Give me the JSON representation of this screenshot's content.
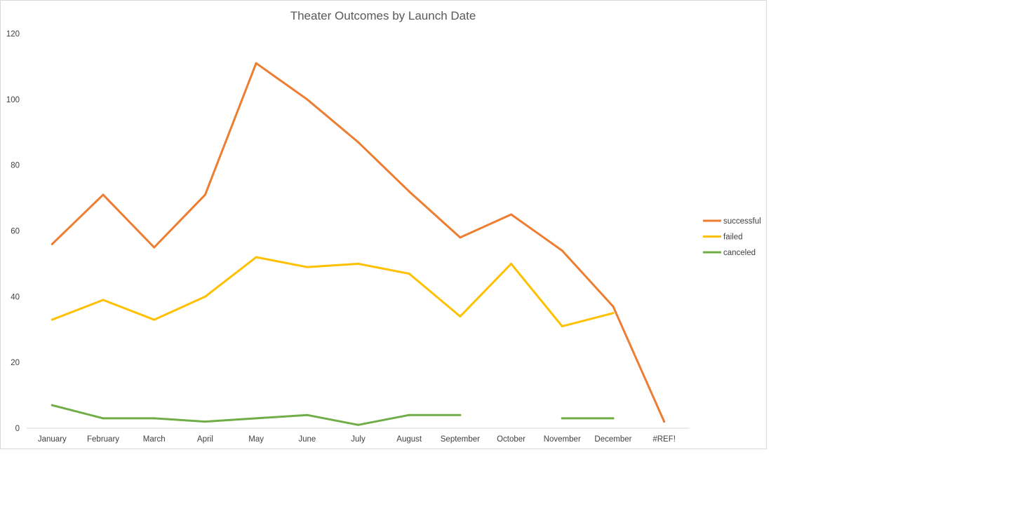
{
  "chart_data": {
    "type": "line",
    "title": "Theater Outcomes by Launch Date",
    "xlabel": "",
    "ylabel": "",
    "categories": [
      "January",
      "February",
      "March",
      "April",
      "May",
      "June",
      "July",
      "August",
      "September",
      "October",
      "November",
      "December",
      "#REF!"
    ],
    "ylim": [
      0,
      120
    ],
    "yticks": [
      0,
      20,
      40,
      60,
      80,
      100,
      120
    ],
    "grid": false,
    "legend_position": "right",
    "series": [
      {
        "name": "successful",
        "color": "#ED7D31",
        "values": [
          56,
          71,
          55,
          71,
          111,
          100,
          87,
          72,
          58,
          65,
          54,
          37,
          2
        ]
      },
      {
        "name": "failed",
        "color": "#FFC000",
        "values": [
          33,
          39,
          33,
          40,
          52,
          49,
          50,
          47,
          34,
          50,
          31,
          35,
          null
        ]
      },
      {
        "name": "canceled",
        "color": "#70AD47",
        "values": [
          7,
          3,
          3,
          2,
          3,
          4,
          1,
          4,
          4,
          null,
          3,
          3,
          null
        ]
      }
    ]
  }
}
